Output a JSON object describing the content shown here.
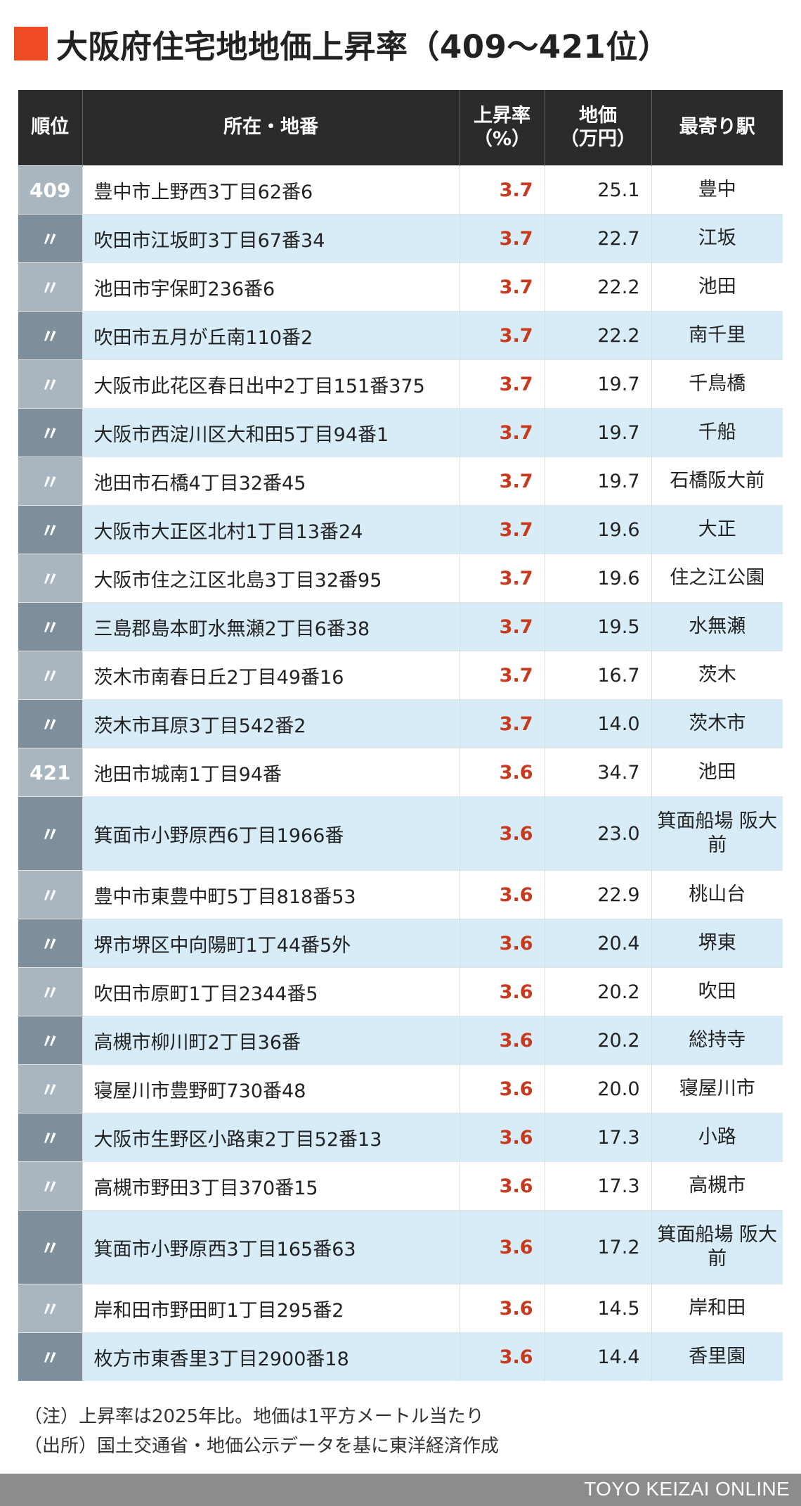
{
  "title": "大阪府住宅地地価上昇率（409〜421位）",
  "headers": {
    "rank": "順位",
    "location": "所在・地番",
    "rate": "上昇率\n（%）",
    "price": "地価\n（万円）",
    "station": "最寄り駅"
  },
  "rows": [
    {
      "rank": "409",
      "location": "豊中市上野西3丁目62番6",
      "rate": "3.7",
      "price": "25.1",
      "station": "豊中"
    },
    {
      "rank": "〃",
      "location": "吹田市江坂町3丁目67番34",
      "rate": "3.7",
      "price": "22.7",
      "station": "江坂"
    },
    {
      "rank": "〃",
      "location": "池田市宇保町236番6",
      "rate": "3.7",
      "price": "22.2",
      "station": "池田"
    },
    {
      "rank": "〃",
      "location": "吹田市五月が丘南110番2",
      "rate": "3.7",
      "price": "22.2",
      "station": "南千里"
    },
    {
      "rank": "〃",
      "location": "大阪市此花区春日出中2丁目151番375",
      "rate": "3.7",
      "price": "19.7",
      "station": "千鳥橋"
    },
    {
      "rank": "〃",
      "location": "大阪市西淀川区大和田5丁目94番1",
      "rate": "3.7",
      "price": "19.7",
      "station": "千船"
    },
    {
      "rank": "〃",
      "location": "池田市石橋4丁目32番45",
      "rate": "3.7",
      "price": "19.7",
      "station": "石橋阪大前"
    },
    {
      "rank": "〃",
      "location": "大阪市大正区北村1丁目13番24",
      "rate": "3.7",
      "price": "19.6",
      "station": "大正"
    },
    {
      "rank": "〃",
      "location": "大阪市住之江区北島3丁目32番95",
      "rate": "3.7",
      "price": "19.6",
      "station": "住之江公園"
    },
    {
      "rank": "〃",
      "location": "三島郡島本町水無瀬2丁目6番38",
      "rate": "3.7",
      "price": "19.5",
      "station": "水無瀬"
    },
    {
      "rank": "〃",
      "location": "茨木市南春日丘2丁目49番16",
      "rate": "3.7",
      "price": "16.7",
      "station": "茨木"
    },
    {
      "rank": "〃",
      "location": "茨木市耳原3丁目542番2",
      "rate": "3.7",
      "price": "14.0",
      "station": "茨木市"
    },
    {
      "rank": "421",
      "location": "池田市城南1丁目94番",
      "rate": "3.6",
      "price": "34.7",
      "station": "池田"
    },
    {
      "rank": "〃",
      "location": "箕面市小野原西6丁目1966番",
      "rate": "3.6",
      "price": "23.0",
      "station": "箕面船場\n阪大前"
    },
    {
      "rank": "〃",
      "location": "豊中市東豊中町5丁目818番53",
      "rate": "3.6",
      "price": "22.9",
      "station": "桃山台"
    },
    {
      "rank": "〃",
      "location": "堺市堺区中向陽町1丁44番5外",
      "rate": "3.6",
      "price": "20.4",
      "station": "堺東"
    },
    {
      "rank": "〃",
      "location": "吹田市原町1丁目2344番5",
      "rate": "3.6",
      "price": "20.2",
      "station": "吹田"
    },
    {
      "rank": "〃",
      "location": "高槻市柳川町2丁目36番",
      "rate": "3.6",
      "price": "20.2",
      "station": "総持寺"
    },
    {
      "rank": "〃",
      "location": "寝屋川市豊野町730番48",
      "rate": "3.6",
      "price": "20.0",
      "station": "寝屋川市"
    },
    {
      "rank": "〃",
      "location": "大阪市生野区小路東2丁目52番13",
      "rate": "3.6",
      "price": "17.3",
      "station": "小路"
    },
    {
      "rank": "〃",
      "location": "高槻市野田3丁目370番15",
      "rate": "3.6",
      "price": "17.3",
      "station": "高槻市"
    },
    {
      "rank": "〃",
      "location": "箕面市小野原西3丁目165番63",
      "rate": "3.6",
      "price": "17.2",
      "station": "箕面船場\n阪大前"
    },
    {
      "rank": "〃",
      "location": "岸和田市野田町1丁目295番2",
      "rate": "3.6",
      "price": "14.5",
      "station": "岸和田"
    },
    {
      "rank": "〃",
      "location": "枚方市東香里3丁目2900番18",
      "rate": "3.6",
      "price": "14.4",
      "station": "香里園"
    }
  ],
  "notes": [
    "（注）上昇率は2025年比。地価は1平方メートル当たり",
    "（出所）国土交通省・地価公示データを基に東洋経済作成"
  ],
  "footer": "TOYO KEIZAI ONLINE",
  "colors": {
    "accent": "#ee4a23",
    "header_bg": "#2b2b2b",
    "row_alt_bg": "#d8ecf7",
    "rank_light": "#a9b6bf",
    "rank_dark": "#7e8f9b",
    "rate_text": "#c8391e",
    "footer_bg": "#8c8c8c"
  }
}
